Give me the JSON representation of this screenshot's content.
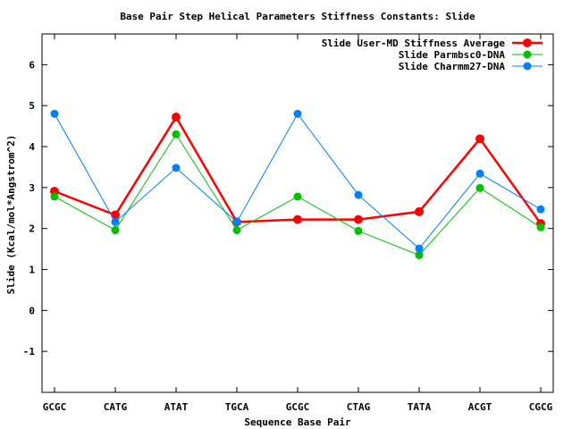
{
  "chart_data": {
    "type": "line",
    "title": "Base Pair Step Helical Parameters Stiffness Constants: Slide",
    "xlabel": "Sequence Base Pair",
    "ylabel": "Slide (Kcal/mol*Angstrom^2)",
    "categories": [
      "GCGC",
      "CATG",
      "ATAT",
      "TGCA",
      "GCGC",
      "CTAG",
      "TATA",
      "ACGT",
      "CGCG"
    ],
    "ylim": [
      -2,
      6.75
    ],
    "yticks": [
      -1,
      0,
      1,
      2,
      3,
      4,
      5,
      6
    ],
    "grid": false,
    "legend_position": "top-right",
    "series": [
      {
        "name": "Slide User-MD Stiffness Average",
        "color": "#ff0000",
        "values": [
          2.91,
          2.33,
          4.72,
          2.16,
          2.22,
          2.22,
          2.41,
          4.19,
          2.12
        ]
      },
      {
        "name": "Slide Parmbsc0-DNA",
        "color": "#00c000",
        "values": [
          2.78,
          1.96,
          4.3,
          1.96,
          2.78,
          1.94,
          1.35,
          2.99,
          2.03
        ]
      },
      {
        "name": "Slide Charmm27-DNA",
        "color": "#0080ff",
        "values": [
          4.8,
          2.16,
          3.48,
          2.16,
          4.8,
          2.82,
          1.51,
          3.34,
          2.47
        ]
      }
    ]
  }
}
